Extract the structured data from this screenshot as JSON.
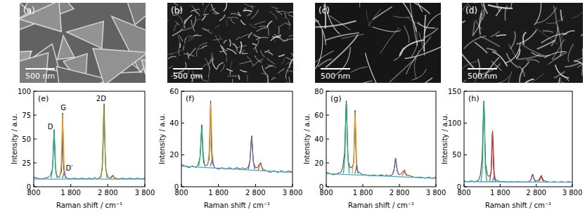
{
  "images": [
    {
      "label": "(a)",
      "scale_bar": "500 nm"
    },
    {
      "label": "(b)",
      "scale_bar": "500 nm"
    },
    {
      "label": "(c)",
      "scale_bar": "500 nm"
    },
    {
      "label": "(d)",
      "scale_bar": "500 nm"
    }
  ],
  "chart_data": [
    {
      "type": "line",
      "title": "(e)",
      "x_label": "Raman shift / cm⁻¹",
      "y_label": "Intensity / a.u.",
      "xlim": [
        800,
        3800
      ],
      "ylim": [
        0,
        100
      ],
      "xticks": [
        800,
        {
          "value": 1800,
          "label": "1 800"
        },
        {
          "value": 2800,
          "label": "2 800"
        },
        {
          "value": 3800,
          "label": "3 800"
        }
      ],
      "yticks": [
        0,
        25,
        50,
        75,
        100
      ],
      "grid": false,
      "x": [
        800,
        900,
        1000,
        1100,
        1200,
        1250,
        1300,
        1325,
        1340,
        1350,
        1360,
        1375,
        1400,
        1450,
        1500,
        1550,
        1570,
        1580,
        1590,
        1600,
        1610,
        1625,
        1650,
        1700,
        1800,
        1900,
        2000,
        2100,
        2200,
        2300,
        2400,
        2450,
        2500,
        2600,
        2650,
        2675,
        2690,
        2700,
        2710,
        2725,
        2750,
        2800,
        2850,
        2900,
        2930,
        2945,
        2960,
        3000,
        3100,
        3200,
        3300,
        3400,
        3500,
        3600,
        3700,
        3800
      ],
      "series": [
        {
          "color": "#3a3a3a",
          "values": [
            10,
            9,
            8,
            9,
            10,
            12,
            18,
            32,
            52,
            60,
            50,
            28,
            14,
            10,
            11,
            16,
            40,
            77,
            58,
            28,
            18,
            15,
            11,
            9,
            8,
            9,
            8,
            9,
            8,
            9,
            8,
            10,
            8,
            10,
            18,
            45,
            80,
            87,
            72,
            40,
            18,
            10,
            9,
            11,
            12,
            11,
            10,
            9,
            8,
            9,
            8,
            9,
            8,
            9,
            8,
            9
          ]
        },
        {
          "color": "#33b5c9",
          "x": [
            800,
            3800
          ],
          "values": [
            8,
            8
          ]
        },
        {
          "color": "#1fb57a",
          "x": [
            1270,
            1310,
            1330,
            1350,
            1370,
            1390,
            1430
          ],
          "values": [
            9,
            20,
            42,
            58,
            42,
            20,
            9
          ]
        },
        {
          "color": "#f39a1e",
          "x": [
            1500,
            1540,
            1560,
            1580,
            1600,
            1620,
            1660
          ],
          "values": [
            9,
            22,
            50,
            75,
            50,
            22,
            9
          ]
        },
        {
          "color": "#4f6bd0",
          "x": [
            1570,
            1600,
            1620,
            1640,
            1670
          ],
          "values": [
            9,
            12,
            15,
            12,
            9
          ]
        },
        {
          "color": "#8c9b2d",
          "x": [
            2610,
            2650,
            2675,
            2695,
            2715,
            2740,
            2780
          ],
          "values": [
            9,
            22,
            55,
            85,
            55,
            22,
            9
          ]
        },
        {
          "color": "#e8602c",
          "x": [
            2880,
            2910,
            2940,
            2970,
            3000
          ],
          "values": [
            8,
            10,
            12,
            10,
            8
          ]
        }
      ],
      "annotations": [
        {
          "text": "D",
          "x": 1250,
          "y": 60
        },
        {
          "text": "G",
          "x": 1600,
          "y": 80
        },
        {
          "text": "D′",
          "x": 1760,
          "y": 17
        },
        {
          "text": "2D",
          "x": 2620,
          "y": 90
        }
      ]
    },
    {
      "type": "line",
      "title": "(f)",
      "x_label": "Raman shift / cm⁻¹",
      "y_label": "Intensity / a.u.",
      "xlim": [
        800,
        3800
      ],
      "ylim": [
        0,
        60
      ],
      "xticks": [
        800,
        {
          "value": 1800,
          "label": "1 800"
        },
        {
          "value": 2800,
          "label": "2 800"
        },
        {
          "value": 3800,
          "label": "3 800"
        }
      ],
      "yticks": [
        0,
        20,
        40,
        60
      ],
      "grid": false,
      "x": [
        800,
        900,
        1000,
        1100,
        1200,
        1250,
        1300,
        1325,
        1340,
        1350,
        1360,
        1375,
        1400,
        1450,
        1500,
        1550,
        1570,
        1580,
        1590,
        1600,
        1610,
        1625,
        1650,
        1700,
        1800,
        1900,
        2000,
        2100,
        2200,
        2300,
        2400,
        2450,
        2500,
        2600,
        2650,
        2675,
        2690,
        2700,
        2710,
        2725,
        2750,
        2800,
        2850,
        2900,
        2930,
        2945,
        2960,
        3000,
        3100,
        3200,
        3300,
        3400,
        3500,
        3600,
        3700,
        3800
      ],
      "series": [
        {
          "color": "#3a3a3a",
          "values": [
            14,
            13,
            12,
            13,
            12,
            14,
            18,
            28,
            36,
            39,
            34,
            22,
            15,
            13,
            14,
            17,
            30,
            48,
            54,
            38,
            24,
            18,
            14,
            12,
            11,
            12,
            11,
            12,
            11,
            12,
            11,
            12,
            11,
            12,
            16,
            25,
            31,
            32,
            29,
            22,
            15,
            12,
            12,
            14,
            15,
            15,
            13,
            11,
            10,
            9,
            10,
            9,
            10,
            9,
            10,
            9
          ]
        },
        {
          "color": "#33b5c9",
          "x": [
            800,
            3800
          ],
          "values": [
            13,
            9
          ]
        },
        {
          "color": "#1fb57a",
          "x": [
            1270,
            1310,
            1330,
            1350,
            1370,
            1390,
            1430
          ],
          "values": [
            13,
            20,
            30,
            37,
            30,
            20,
            13
          ]
        },
        {
          "color": "#f39a1e",
          "x": [
            1510,
            1550,
            1570,
            1590,
            1610,
            1630,
            1670
          ],
          "values": [
            13,
            22,
            40,
            52,
            40,
            22,
            13
          ]
        },
        {
          "color": "#4f6bd0",
          "x": [
            1580,
            1610,
            1630,
            1650,
            1680
          ],
          "values": [
            13,
            15,
            17,
            15,
            13
          ]
        },
        {
          "color": "#7d63a8",
          "x": [
            2610,
            2650,
            2675,
            2695,
            2715,
            2740,
            2780
          ],
          "values": [
            11,
            16,
            25,
            31,
            25,
            16,
            11
          ]
        },
        {
          "color": "#e8602c",
          "x": [
            2870,
            2905,
            2935,
            2965,
            3000
          ],
          "values": [
            10,
            13,
            15,
            13,
            10
          ]
        }
      ]
    },
    {
      "type": "line",
      "title": "(g)",
      "x_label": "Raman shift / cm⁻¹",
      "y_label": "Intensity / a.u.",
      "xlim": [
        800,
        3800
      ],
      "ylim": [
        0,
        80
      ],
      "xticks": [
        800,
        {
          "value": 1800,
          "label": "1 800"
        },
        {
          "value": 2800,
          "label": "2 800"
        },
        {
          "value": 3800,
          "label": "3 800"
        }
      ],
      "yticks": [
        0,
        20,
        40,
        60,
        80
      ],
      "grid": false,
      "x": [
        800,
        900,
        1000,
        1100,
        1200,
        1250,
        1300,
        1325,
        1340,
        1350,
        1360,
        1375,
        1400,
        1450,
        1500,
        1550,
        1570,
        1580,
        1590,
        1600,
        1610,
        1625,
        1650,
        1700,
        1800,
        1900,
        2000,
        2100,
        2200,
        2300,
        2400,
        2450,
        2500,
        2600,
        2650,
        2675,
        2690,
        2700,
        2710,
        2725,
        2750,
        2800,
        2850,
        2900,
        2930,
        2945,
        2960,
        3000,
        3100,
        3200,
        3300,
        3400,
        3500,
        3600,
        3700,
        3800
      ],
      "series": [
        {
          "color": "#3a3a3a",
          "values": [
            12,
            11,
            10,
            11,
            12,
            16,
            28,
            52,
            68,
            72,
            66,
            42,
            22,
            16,
            16,
            20,
            38,
            58,
            64,
            48,
            30,
            20,
            14,
            12,
            10,
            10,
            9,
            10,
            9,
            10,
            9,
            10,
            9,
            10,
            13,
            19,
            23,
            24,
            22,
            17,
            12,
            10,
            11,
            13,
            14,
            14,
            12,
            10,
            9,
            8,
            8,
            8,
            7,
            8,
            7,
            8
          ]
        },
        {
          "color": "#33b5c9",
          "x": [
            800,
            3800
          ],
          "values": [
            11,
            7
          ]
        },
        {
          "color": "#1fb57a",
          "x": [
            1270,
            1310,
            1330,
            1350,
            1370,
            1390,
            1430
          ],
          "values": [
            11,
            25,
            50,
            70,
            50,
            25,
            11
          ]
        },
        {
          "color": "#f39a1e",
          "x": [
            1510,
            1550,
            1570,
            1590,
            1610,
            1630,
            1670
          ],
          "values": [
            11,
            22,
            45,
            62,
            45,
            22,
            11
          ]
        },
        {
          "color": "#4f6bd0",
          "x": [
            1580,
            1610,
            1630,
            1650,
            1680
          ],
          "values": [
            11,
            14,
            18,
            14,
            11
          ]
        },
        {
          "color": "#7d63a8",
          "x": [
            2610,
            2650,
            2675,
            2695,
            2715,
            2740,
            2780
          ],
          "values": [
            10,
            14,
            19,
            23,
            19,
            14,
            10
          ]
        },
        {
          "color": "#e8602c",
          "x": [
            2870,
            2905,
            2935,
            2965,
            3000
          ],
          "values": [
            9,
            11,
            13,
            11,
            9
          ]
        }
      ]
    },
    {
      "type": "line",
      "title": "(h)",
      "x_label": "Raman shift / cm⁻¹",
      "y_label": "Intensity / a.u.",
      "xlim": [
        800,
        3800
      ],
      "ylim": [
        0,
        150
      ],
      "xticks": [
        800,
        {
          "value": 1800,
          "label": "1 800"
        },
        {
          "value": 2800,
          "label": "2 800"
        },
        {
          "value": 3800,
          "label": "3 800"
        }
      ],
      "yticks": [
        0,
        50,
        100,
        150
      ],
      "grid": false,
      "x": [
        800,
        900,
        1000,
        1100,
        1200,
        1250,
        1300,
        1325,
        1340,
        1350,
        1360,
        1375,
        1400,
        1450,
        1500,
        1550,
        1570,
        1580,
        1590,
        1600,
        1610,
        1625,
        1650,
        1700,
        1800,
        1900,
        2000,
        2100,
        2200,
        2300,
        2400,
        2450,
        2500,
        2600,
        2650,
        2675,
        2690,
        2700,
        2710,
        2725,
        2750,
        2800,
        2850,
        2900,
        2930,
        2945,
        2960,
        3000,
        3100,
        3200,
        3300,
        3400,
        3500,
        3600,
        3700,
        3800
      ],
      "series": [
        {
          "color": "#3a3a3a",
          "values": [
            9,
            8,
            9,
            8,
            10,
            18,
            45,
            95,
            128,
            135,
            122,
            78,
            35,
            18,
            16,
            22,
            50,
            80,
            88,
            66,
            38,
            22,
            14,
            10,
            8,
            8,
            7,
            8,
            7,
            8,
            7,
            8,
            7,
            8,
            11,
            16,
            19,
            20,
            19,
            15,
            11,
            9,
            10,
            14,
            17,
            18,
            15,
            10,
            8,
            7,
            8,
            7,
            8,
            7,
            8,
            7
          ]
        },
        {
          "color": "#33b5c9",
          "x": [
            800,
            3800
          ],
          "values": [
            8,
            7
          ]
        },
        {
          "color": "#1fb57a",
          "x": [
            1270,
            1310,
            1330,
            1350,
            1370,
            1390,
            1430
          ],
          "values": [
            8,
            30,
            90,
            133,
            90,
            30,
            8
          ]
        },
        {
          "color": "#e0312a",
          "x": [
            1510,
            1550,
            1570,
            1590,
            1610,
            1630,
            1670
          ],
          "values": [
            8,
            25,
            60,
            86,
            60,
            25,
            8
          ]
        },
        {
          "color": "#4f6bd0",
          "x": [
            1580,
            1610,
            1630,
            1650,
            1680
          ],
          "values": [
            8,
            12,
            16,
            12,
            8
          ]
        },
        {
          "color": "#7d63a8",
          "x": [
            2610,
            2650,
            2675,
            2695,
            2715,
            2740,
            2780
          ],
          "values": [
            8,
            11,
            16,
            19,
            16,
            11,
            8
          ]
        },
        {
          "color": "#e0312a",
          "x": [
            2870,
            2905,
            2935,
            2965,
            3000
          ],
          "values": [
            8,
            12,
            17,
            12,
            8
          ]
        }
      ]
    }
  ]
}
